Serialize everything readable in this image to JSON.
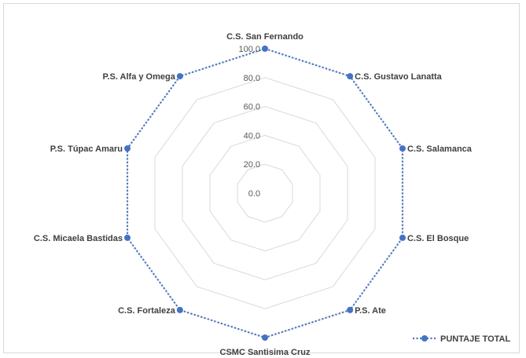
{
  "chart_data": {
    "type": "radar",
    "categories": [
      "C.S. San Fernando",
      "C.S. Gustavo Lanatta",
      "C.S. Salamanca",
      "C.S. El Bosque",
      "P.S. Ate",
      "CSMC Santisima Cruz",
      "C.S. Fortaleza",
      "C.S. Micaela Bastidas",
      "P.S. Túpac Amaru",
      "P.S. Alfa y Omega"
    ],
    "series": [
      {
        "name": "PUNTAJE TOTAL",
        "values": [
          100,
          100,
          100,
          100,
          100,
          100,
          100,
          100,
          100,
          100
        ],
        "color": "#4472c4"
      }
    ],
    "r_ticks": [
      "0.0",
      "20.0",
      "40.0",
      "60.0",
      "80.0",
      "100.0"
    ],
    "rlim": [
      0,
      100
    ],
    "grid": true,
    "legend_position": "bottom-right",
    "line_style": "dotted",
    "grid_color": "#d9d9d9"
  }
}
